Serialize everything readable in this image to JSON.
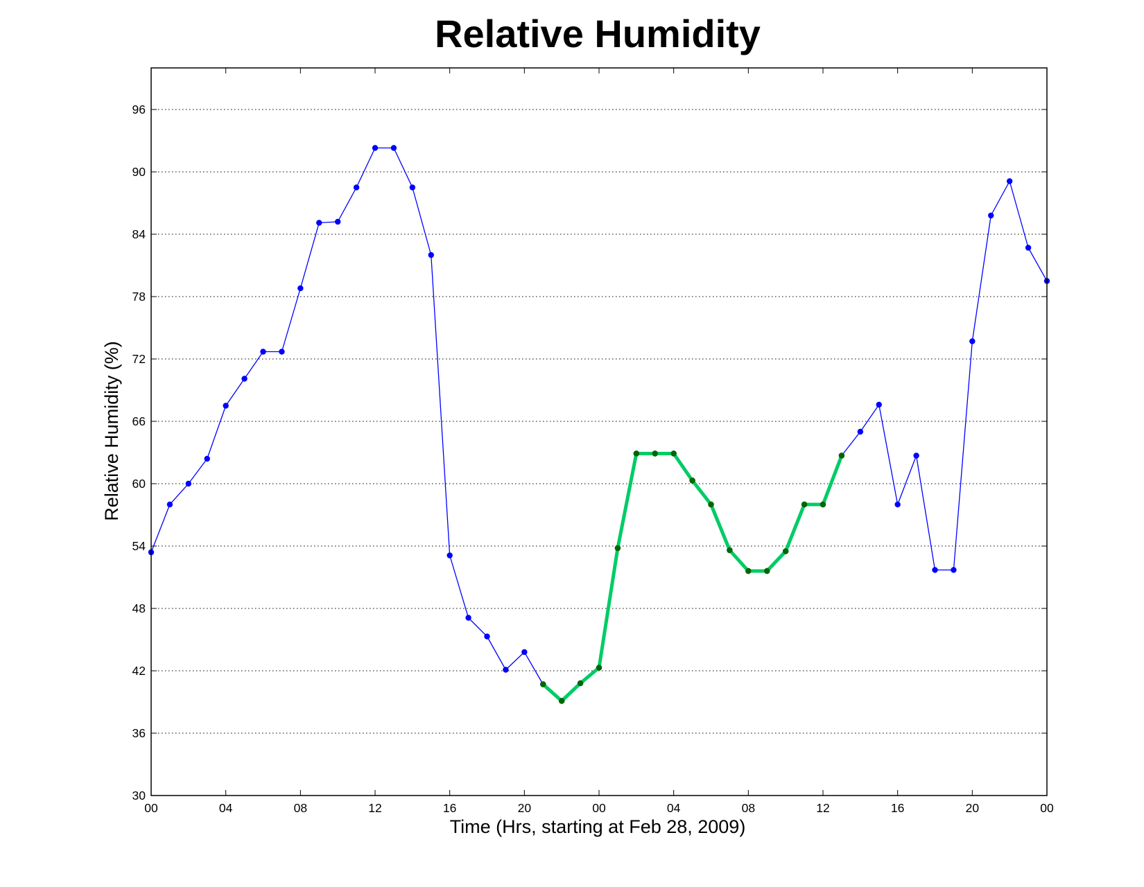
{
  "chart_data": {
    "type": "line",
    "title": "Relative Humidity",
    "xlabel": "Time (Hrs, starting at Feb 28, 2009)",
    "ylabel": "Relative Humidity (%)",
    "xlim": [
      0,
      48
    ],
    "ylim": [
      30,
      100
    ],
    "grid": "horizontal dotted",
    "x_tick_positions": [
      0,
      4,
      8,
      12,
      16,
      20,
      24,
      28,
      32,
      36,
      40,
      44,
      48
    ],
    "x_tick_labels": [
      "00",
      "04",
      "08",
      "12",
      "16",
      "20",
      "00",
      "04",
      "08",
      "12",
      "16",
      "20",
      "00"
    ],
    "y_ticks": [
      30,
      36,
      42,
      48,
      54,
      60,
      66,
      72,
      78,
      84,
      90,
      96
    ],
    "series": [
      {
        "color": "#0000ff",
        "x": [
          0,
          1,
          2,
          3,
          4,
          5,
          6,
          7,
          8,
          9,
          10,
          11,
          12,
          13,
          14,
          15,
          16,
          17,
          18,
          19,
          20,
          21,
          22,
          23,
          24,
          25,
          26,
          27,
          28,
          29,
          30,
          31,
          32,
          33,
          34,
          35,
          36,
          37,
          38,
          39,
          40,
          41,
          42,
          43,
          44,
          45,
          46,
          47,
          48
        ],
        "y": [
          53.4,
          58,
          60,
          62.4,
          67.5,
          70.1,
          72.7,
          72.7,
          78.8,
          85.1,
          85.2,
          88.5,
          92.3,
          92.3,
          88.5,
          82,
          53.1,
          47.1,
          45.3,
          42.1,
          43.8,
          40.7,
          39.1,
          40.8,
          42.3,
          53.8,
          62.9,
          62.9,
          62.9,
          60.3,
          58,
          53.6,
          51.6,
          51.6,
          53.5,
          58,
          58,
          62.7,
          65,
          67.6,
          58,
          62.7,
          51.7,
          51.7,
          73.7,
          85.8,
          89.1,
          82.7,
          79.5
        ]
      },
      {
        "color": "#00cc66",
        "marker_color": "#006600",
        "x": [
          21,
          22,
          23,
          24,
          25,
          26,
          27,
          28,
          29,
          30,
          31,
          32,
          33,
          34,
          35,
          36,
          37
        ],
        "y": [
          40.7,
          39.1,
          40.8,
          42.3,
          53.8,
          62.9,
          62.9,
          62.9,
          60.3,
          58,
          53.6,
          51.6,
          51.6,
          53.5,
          58,
          58,
          62.7
        ]
      }
    ]
  }
}
